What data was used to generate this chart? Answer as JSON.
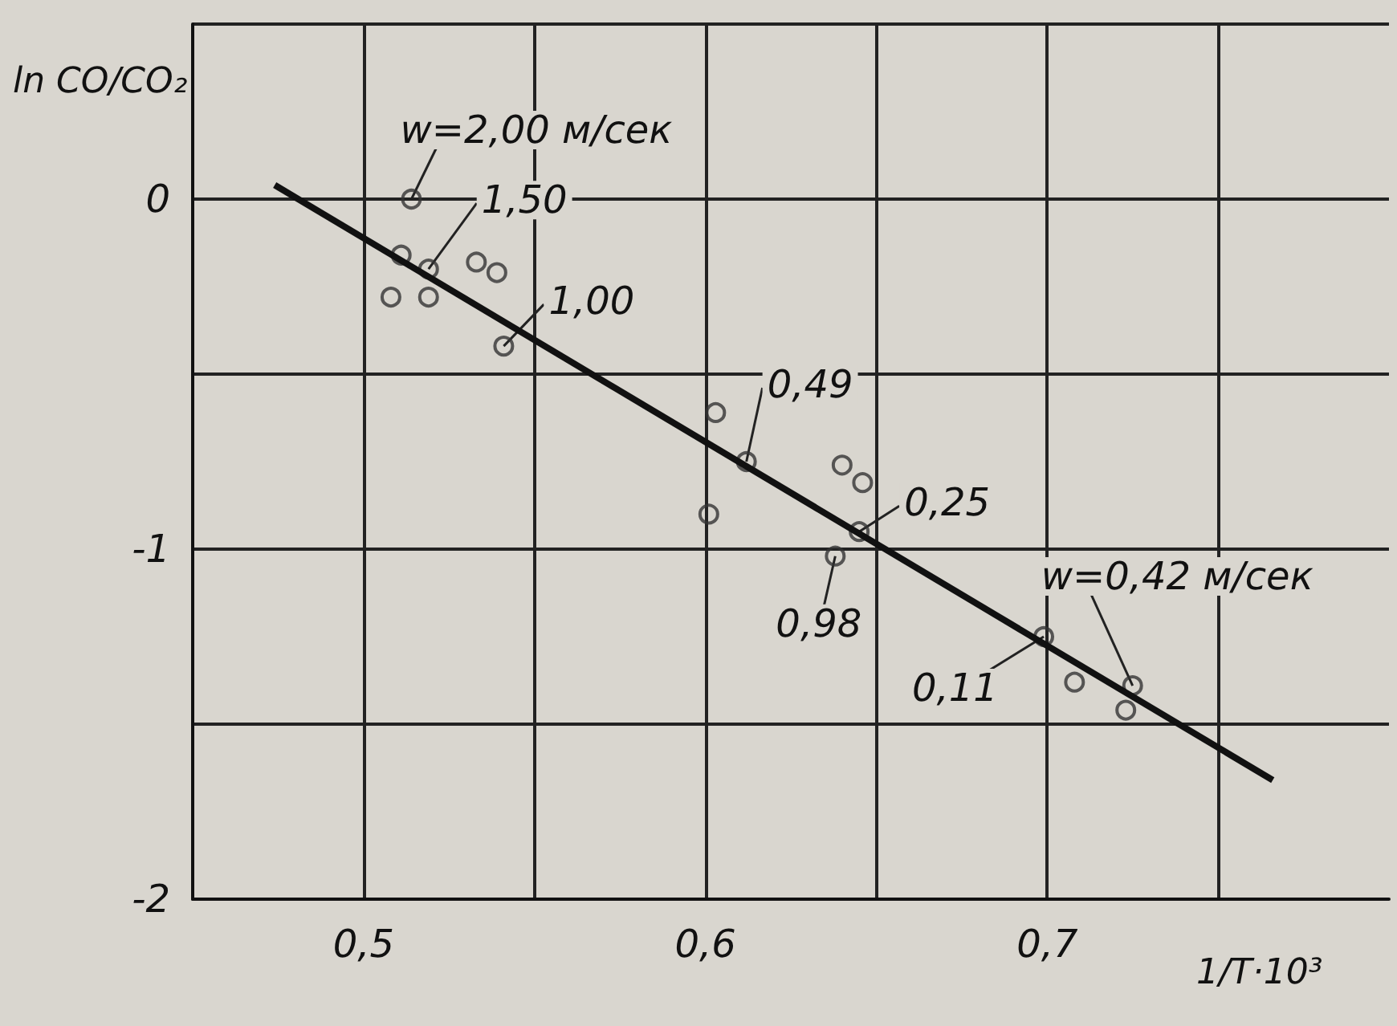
{
  "chart_data": {
    "type": "scatter",
    "xlabel": "1/T·10³",
    "ylabel": "ln CO/CO₂",
    "xlim": [
      0.45,
      0.8
    ],
    "ylim": [
      -2,
      0.5
    ],
    "xticks": [
      {
        "value": 0.45,
        "label": null
      },
      {
        "value": 0.5,
        "label": "0,5"
      },
      {
        "value": 0.55,
        "label": null
      },
      {
        "value": 0.6,
        "label": "0,6"
      },
      {
        "value": 0.65,
        "label": null
      },
      {
        "value": 0.7,
        "label": "0,7"
      },
      {
        "value": 0.75,
        "label": null
      }
    ],
    "yticks": [
      {
        "value": -2,
        "label": "-2"
      },
      {
        "value": -1.5,
        "label": null
      },
      {
        "value": -1,
        "label": "-1"
      },
      {
        "value": -0.5,
        "label": null
      },
      {
        "value": 0,
        "label": "0"
      },
      {
        "value": 0.5,
        "label": null
      }
    ],
    "grid": true,
    "marker": "circle",
    "series": [
      {
        "color": "#333333",
        "x": [
          0.514,
          0.511,
          0.519,
          0.508,
          0.519,
          0.533,
          0.539,
          0.541,
          0.603,
          0.612,
          0.601,
          0.64,
          0.646,
          0.645,
          0.638,
          0.699,
          0.708,
          0.725,
          0.723
        ],
        "values": [
          0.0,
          -0.16,
          -0.2,
          -0.28,
          -0.28,
          -0.18,
          -0.21,
          -0.42,
          -0.61,
          -0.75,
          -0.9,
          -0.76,
          -0.81,
          -0.95,
          -1.02,
          -1.25,
          -1.38,
          -1.39,
          -1.46
        ]
      },
      {
        "type": "line",
        "color": "#111111",
        "marker": "none",
        "line_style": "solid",
        "x": [
          0.474,
          0.766
        ],
        "values": [
          0.04,
          -1.66
        ]
      }
    ],
    "annotations": [
      {
        "text": "w=2,00 м/сек",
        "x": 0.514,
        "y": 0.0
      },
      {
        "text": "1,50",
        "x": 0.519,
        "y": -0.2
      },
      {
        "text": "1,00",
        "x": 0.541,
        "y": -0.42
      },
      {
        "text": "0,49",
        "x": 0.612,
        "y": -0.75
      },
      {
        "text": "0,25",
        "x": 0.645,
        "y": -0.95
      },
      {
        "text": "0,98",
        "x": 0.638,
        "y": -1.02
      },
      {
        "text": "0,11",
        "x": 0.699,
        "y": -1.25
      },
      {
        "text": "w=0,42 м/сек",
        "x": 0.725,
        "y": -1.39
      }
    ]
  }
}
